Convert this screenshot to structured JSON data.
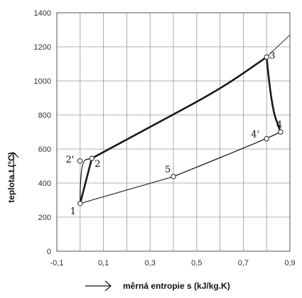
{
  "chart_data": {
    "type": "line",
    "xlabel": "měrná entropie s (kJ/kg.K)",
    "ylabel": "teplota t (°C)",
    "xlim": [
      -0.1,
      0.9
    ],
    "ylim": [
      0,
      1400
    ],
    "xticks": [
      "-0,1",
      "0,1",
      "0,3",
      "0,5",
      "0,7",
      "0,9"
    ],
    "xtick_values": [
      -0.1,
      0.1,
      0.3,
      0.5,
      0.7,
      0.9
    ],
    "yticks": [
      "0",
      "200",
      "400",
      "600",
      "800",
      "1000",
      "1200",
      "1400"
    ],
    "ytick_values": [
      0,
      200,
      400,
      600,
      800,
      1000,
      1200,
      1400
    ],
    "grid": true,
    "points": [
      {
        "label": "1",
        "s": 0.0,
        "t": 280
      },
      {
        "label": "2'",
        "s": -0.001,
        "t": 530
      },
      {
        "label": "2",
        "s": 0.05,
        "t": 545
      },
      {
        "label": "3",
        "s": 0.8,
        "t": 1140
      },
      {
        "label": "4",
        "s": 0.86,
        "t": 700
      },
      {
        "label": "4'",
        "s": 0.8,
        "t": 660
      },
      {
        "label": "5",
        "s": 0.4,
        "t": 438
      }
    ],
    "series": [
      {
        "values": [
          [
            0.0,
            280
          ],
          [
            0.05,
            545
          ]
        ]
      },
      {
        "values": [
          [
            0.05,
            545
          ],
          [
            0.3,
            730
          ],
          [
            0.6,
            950
          ],
          [
            0.8,
            1140
          ]
        ]
      },
      {
        "values": [
          [
            0.8,
            1140
          ],
          [
            0.82,
            850
          ],
          [
            0.86,
            700
          ]
        ]
      },
      {
        "values": [
          [
            0.86,
            700
          ],
          [
            0.8,
            660
          ],
          [
            0.4,
            438
          ]
        ]
      },
      {
        "values": [
          [
            0.4,
            438
          ],
          [
            0.0,
            280
          ]
        ]
      },
      {
        "values": [
          [
            0.0,
            280
          ],
          [
            -0.001,
            530
          ],
          [
            0.05,
            545
          ]
        ]
      },
      {
        "values": [
          [
            0.8,
            1140
          ],
          [
            0.9,
            1270
          ]
        ]
      }
    ]
  },
  "labels": {
    "x_axis": "měrná entropie s (kJ/kg.K)",
    "y_axis": "teplota t (°C)"
  }
}
